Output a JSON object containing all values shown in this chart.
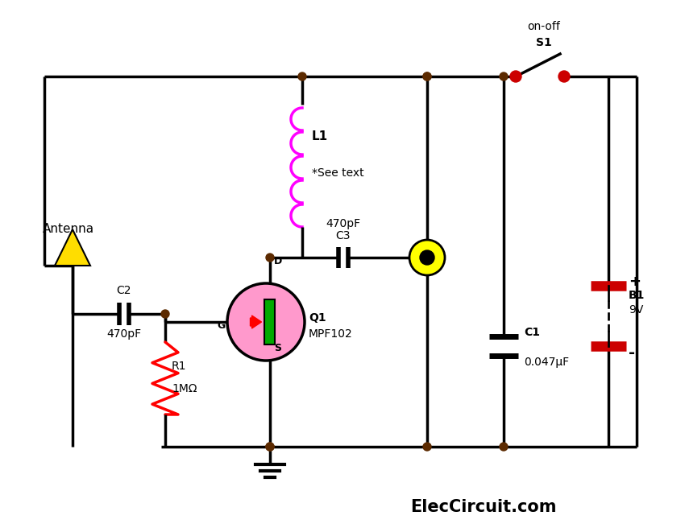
{
  "bg_color": "#ffffff",
  "wire_color": "#000000",
  "node_color": "#5c2a00",
  "component_colors": {
    "antenna": "#ffdd00",
    "capacitor": "#000000",
    "resistor": "#ff0000",
    "inductor": "#ff00ff",
    "transistor_body": "#ff99cc",
    "transistor_channel": "#00aa00",
    "transistor_arrow": "#ff0000",
    "battery_red": "#cc0000",
    "switch_dot": "#cc0000",
    "audio_jack": "#ffff00",
    "ground": "#000000"
  },
  "labels": {
    "antenna": "Antenna",
    "C2": "C2",
    "C2_val": "470pF",
    "R1": "R1",
    "R1_val": "1MΩ",
    "Q1": "Q1",
    "Q1_model": "MPF102",
    "L1": "L1",
    "L1_note": "*See text",
    "C3": "C3",
    "C3_val": "470pF",
    "C1": "C1",
    "C1_val": "0.047μF",
    "B1": "B1",
    "B1_val": "9V",
    "S1": "S1",
    "S1_label": "on-off",
    "G": "G",
    "D": "D",
    "S_label": "S",
    "website": "ElecCircuit.com"
  }
}
